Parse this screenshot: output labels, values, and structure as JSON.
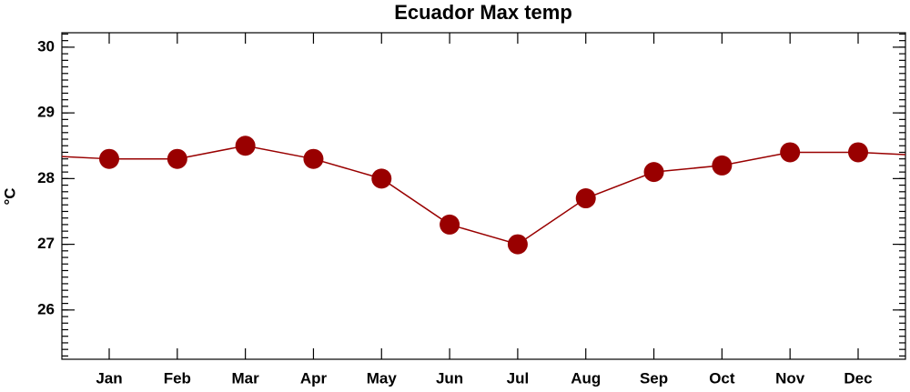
{
  "chart_data": {
    "type": "line",
    "title": "Ecuador Max temp",
    "y_label": "°C",
    "categories": [
      "Jan",
      "Feb",
      "Mar",
      "Apr",
      "May",
      "Jun",
      "Jul",
      "Aug",
      "Sep",
      "Oct",
      "Nov",
      "Dec"
    ],
    "series": [
      {
        "name": "Max temp",
        "color": "#990000",
        "values": [
          28.3,
          28.3,
          28.5,
          28.3,
          28.0,
          27.3,
          27.0,
          27.7,
          28.1,
          28.2,
          28.4,
          28.4
        ]
      }
    ],
    "ylim": [
      25.25,
      30.22
    ],
    "yticks": [
      26,
      27,
      28,
      29,
      30
    ],
    "grid": false
  }
}
